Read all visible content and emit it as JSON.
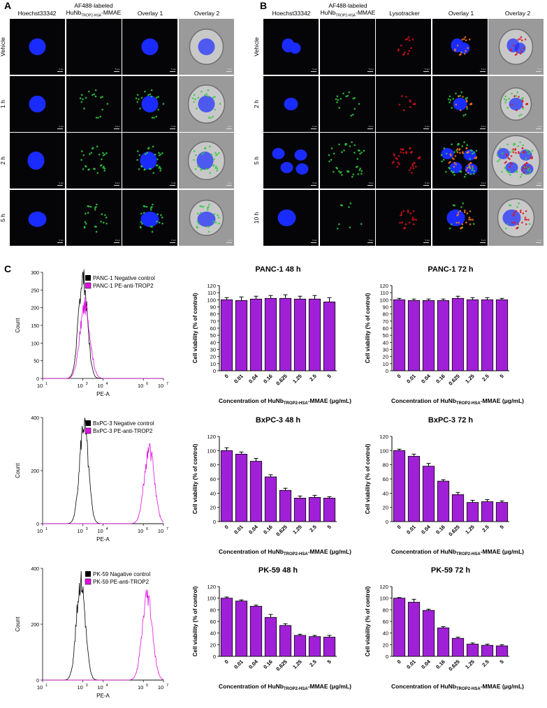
{
  "panel_a": {
    "letter": "A",
    "columns": [
      "Hoechst33342",
      "AF488-labeled",
      "Overlay 1",
      "Overlay 2"
    ],
    "column2_line2_pre": "HuNb",
    "column2_line2_sub": "TROP2-HSA",
    "column2_line2_post": "-MMAE",
    "rows": [
      "Vehicle",
      "1 h",
      "2 h",
      "5 h"
    ]
  },
  "panel_b": {
    "letter": "B",
    "columns": [
      "Hoechst33342",
      "AF488-labeled",
      "Lysotracker",
      "Overlay 1",
      "Overlay 2"
    ],
    "column2_line2_pre": "HuNb",
    "column2_line2_sub": "TROP2-HSA",
    "column2_line2_post": "-MMAE",
    "rows": [
      "Vehicle",
      "2 h",
      "5 h",
      "10 h"
    ]
  },
  "scale_label": "5 μm",
  "panel_c": {
    "letter": "C",
    "xaxis_pre": "Concentration of HuNb",
    "xaxis_sub": "TROP2-HSA",
    "xaxis_post": "-MMAE (μg/mL)",
    "ylabel": "Cell viability (% of control)",
    "flow_xlabel": "PE-A",
    "flow_ylabel": "Count"
  },
  "flow_data": [
    {
      "legend": [
        "PANC-1 Negative control",
        "PANC-1 PE-anti-TROP2"
      ],
      "yticks": [
        0,
        50,
        100,
        150,
        200,
        250,
        300
      ],
      "ymax": 300,
      "neg_peak_log": 3.0,
      "neg_peak": 285,
      "pos_peak_log": 3.1,
      "pos_peak": 205
    },
    {
      "legend": [
        "BxPC-3 Negative control",
        "BxPC-3 PE-anti-TROP2"
      ],
      "yticks": [
        0,
        200,
        400
      ],
      "ymax": 400,
      "neg_peak_log": 3.05,
      "neg_peak": 370,
      "pos_peak_log": 6.3,
      "pos_peak": 280
    },
    {
      "legend": [
        "PK-59 Nagative control",
        "PK-59 PE-anti-TROP2"
      ],
      "yticks": [
        0,
        200,
        400
      ],
      "ymax": 400,
      "neg_peak_log": 2.9,
      "neg_peak": 355,
      "pos_peak_log": 6.2,
      "pos_peak": 305
    }
  ],
  "flow_xticks": [
    "10",
    "10",
    "10",
    "10",
    "10"
  ],
  "flow_xtick_exps": [
    "1",
    "3",
    "4",
    "6",
    "7"
  ],
  "chart_data": [
    {
      "type": "bar",
      "title": "PANC-1 48 h",
      "categories": [
        "0",
        "0.01",
        "0.04",
        "0.16",
        "0.625",
        "1.25",
        "2.5",
        "5"
      ],
      "values": [
        100,
        99,
        101,
        102,
        102,
        101,
        101,
        97
      ],
      "errors": [
        3,
        5,
        4,
        4,
        5,
        4,
        5,
        6
      ],
      "ylim": [
        0,
        120
      ],
      "yticks": [
        0,
        10,
        20,
        30,
        40,
        50,
        60,
        70,
        80,
        90,
        100,
        110,
        120
      ],
      "ylabel": "Cell viability (% of control)",
      "color": "#a020d8"
    },
    {
      "type": "bar",
      "title": "PANC-1 72 h",
      "categories": [
        "0",
        "0.01",
        "0.04",
        "0.16",
        "0.625",
        "1.25",
        "2.5",
        "5"
      ],
      "values": [
        100,
        99,
        99,
        99,
        102,
        100,
        100,
        100
      ],
      "errors": [
        2,
        2,
        2,
        2,
        3,
        3,
        3,
        2
      ],
      "ylim": [
        0,
        120
      ],
      "yticks": [
        0,
        10,
        20,
        30,
        40,
        50,
        60,
        70,
        80,
        90,
        100,
        110,
        120
      ],
      "ylabel": "Cell viability (% of control)",
      "color": "#a020d8"
    },
    {
      "type": "bar",
      "title": "BxPC-3 48 h",
      "categories": [
        "0",
        "0.01",
        "0.04",
        "0.16",
        "0.625",
        "1.25",
        "2.5",
        "5"
      ],
      "values": [
        100,
        95,
        85,
        63,
        44,
        33,
        34,
        33
      ],
      "errors": [
        4,
        3,
        4,
        3,
        3,
        3,
        3,
        2
      ],
      "ylim": [
        0,
        120
      ],
      "yticks": [
        0,
        20,
        40,
        60,
        80,
        100,
        120
      ],
      "ylabel": "Cell viability (% of control)",
      "color": "#a020d8"
    },
    {
      "type": "bar",
      "title": "BxPC-3 72 h",
      "categories": [
        "0",
        "0.01",
        "0.04",
        "0.16",
        "0.625",
        "1.25",
        "2.5",
        "5"
      ],
      "values": [
        100,
        92,
        78,
        57,
        38,
        27,
        28,
        27
      ],
      "errors": [
        2,
        3,
        4,
        2,
        3,
        3,
        3,
        2
      ],
      "ylim": [
        0,
        120
      ],
      "yticks": [
        0,
        20,
        40,
        60,
        80,
        100,
        120
      ],
      "ylabel": "Cell viability (% of control)",
      "color": "#a020d8"
    },
    {
      "type": "bar",
      "title": "PK-59 48 h",
      "categories": [
        "0",
        "0.01",
        "0.04",
        "0.16",
        "0.625",
        "1.25",
        "2.5",
        "5"
      ],
      "values": [
        100,
        95,
        86,
        67,
        53,
        36,
        34,
        33
      ],
      "errors": [
        2,
        2,
        2,
        5,
        3,
        2,
        2,
        3
      ],
      "ylim": [
        0,
        120
      ],
      "yticks": [
        0,
        20,
        40,
        60,
        80,
        100,
        120
      ],
      "ylabel": "Cell viability (% of control)",
      "color": "#a020d8"
    },
    {
      "type": "bar",
      "title": "PK-59 72 h",
      "categories": [
        "0",
        "0.01",
        "0.04",
        "0.16",
        "0.625",
        "1.25",
        "2.5",
        "5"
      ],
      "values": [
        100,
        93,
        79,
        49,
        31,
        21,
        19,
        18
      ],
      "errors": [
        1,
        5,
        2,
        2,
        2,
        2,
        2,
        2
      ],
      "ylim": [
        0,
        120
      ],
      "yticks": [
        0,
        20,
        40,
        60,
        80,
        100,
        120
      ],
      "ylabel": "Cell viability (% of control)",
      "color": "#a020d8"
    }
  ]
}
